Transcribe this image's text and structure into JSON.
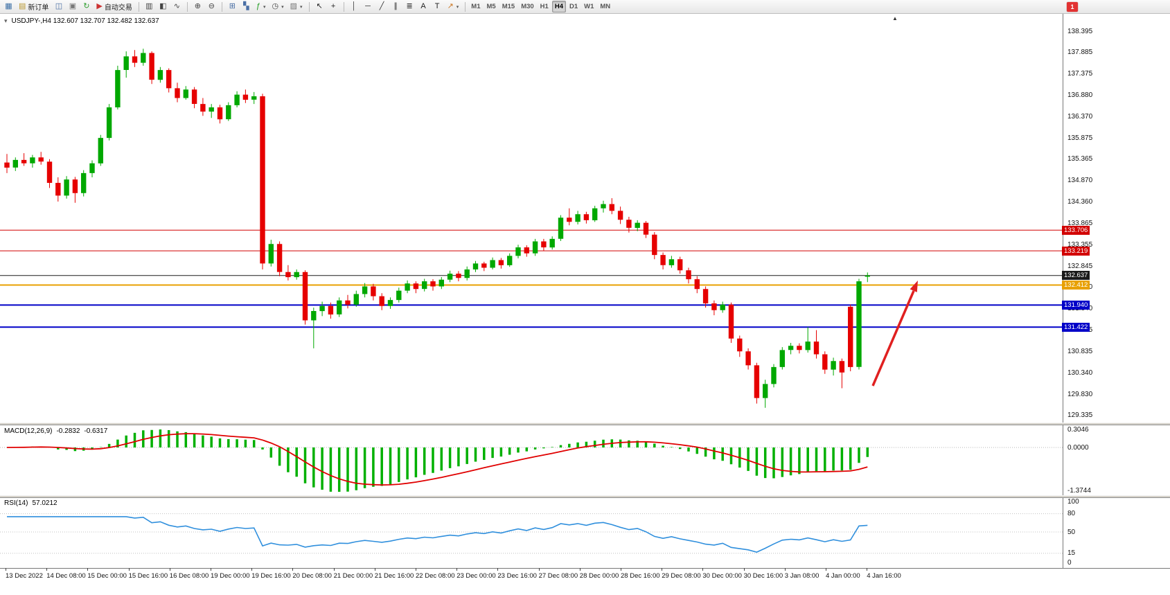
{
  "toolbar": {
    "dropdown_glyph": "▾",
    "notification": "1",
    "buttons": [
      {
        "name": "new-chart",
        "glyph": "▦",
        "color": "#3a6ea5"
      },
      {
        "name": "new-order",
        "glyph": "▤",
        "color": "#b8962e",
        "label": "新订单"
      },
      {
        "name": "market-watch",
        "glyph": "◫",
        "color": "#4a6fa5"
      },
      {
        "name": "data-window",
        "glyph": "▣",
        "color": "#777777"
      },
      {
        "name": "refresh",
        "glyph": "↻",
        "color": "#2e9e2e"
      },
      {
        "name": "autotrading",
        "glyph": "▶",
        "color": "#cc3333",
        "label": "自动交易"
      },
      {
        "sep": true
      },
      {
        "name": "bar-chart",
        "glyph": "▥",
        "color": "#444444"
      },
      {
        "name": "candlestick-chart",
        "glyph": "◧",
        "color": "#444444"
      },
      {
        "name": "line-chart",
        "glyph": "∿",
        "color": "#444444"
      },
      {
        "sep": true
      },
      {
        "name": "zoom-in",
        "glyph": "⊕",
        "color": "#444444"
      },
      {
        "name": "zoom-out",
        "glyph": "⊖",
        "color": "#444444"
      },
      {
        "sep": true
      },
      {
        "name": "tile-windows",
        "glyph": "⊞",
        "color": "#4a6fa5"
      },
      {
        "name": "auto-arrange",
        "glyph": "▚",
        "color": "#4a6fa5"
      },
      {
        "name": "indicators",
        "glyph": "ƒ",
        "color": "#1a9a1a",
        "dropdown": true
      },
      {
        "name": "periods",
        "glyph": "◷",
        "color": "#444444",
        "dropdown": true
      },
      {
        "name": "templates",
        "glyph": "▨",
        "color": "#777777",
        "dropdown": true
      },
      {
        "sep": true
      },
      {
        "name": "cursor",
        "glyph": "↖",
        "color": "#222222"
      },
      {
        "name": "crosshair",
        "glyph": "+",
        "color": "#222222"
      },
      {
        "sep": true
      },
      {
        "name": "vertical-line",
        "glyph": "│",
        "color": "#333333"
      },
      {
        "name": "horizontal-line",
        "glyph": "─",
        "color": "#333333"
      },
      {
        "name": "trendline",
        "glyph": "╱",
        "color": "#333333"
      },
      {
        "name": "equidistant-channel",
        "glyph": "∥",
        "color": "#333333"
      },
      {
        "name": "fibonacci",
        "glyph": "≣",
        "color": "#333333"
      },
      {
        "name": "text",
        "glyph": "A",
        "color": "#222222"
      },
      {
        "name": "text-label",
        "glyph": "T",
        "color": "#222222"
      },
      {
        "name": "arrows",
        "glyph": "↗",
        "color": "#cc7722",
        "dropdown": true
      },
      {
        "sep": true
      }
    ],
    "timeframes": [
      "M1",
      "M5",
      "M15",
      "M30",
      "H1",
      "H4",
      "D1",
      "W1",
      "MN"
    ],
    "active_timeframe": "H4"
  },
  "chart": {
    "title": "USDJPY-,H4 132.607 132.707 132.482 132.637",
    "title_icon": "▾",
    "shift_marker": "▲",
    "symbol": "USDJPY-",
    "period": "H4"
  },
  "price_axis": {
    "labels": [
      "138.395",
      "137.885",
      "137.375",
      "136.880",
      "136.370",
      "135.875",
      "135.365",
      "134.870",
      "134.360",
      "133.865",
      "133.355",
      "132.845",
      "132.350",
      "131.840",
      "131.345",
      "130.835",
      "130.340",
      "129.830",
      "129.335"
    ],
    "tags": [
      {
        "value": "133.706",
        "price": 133.706,
        "color": "#d20000"
      },
      {
        "value": "133.219",
        "price": 133.219,
        "color": "#d20000"
      },
      {
        "value": "132.637",
        "price": 132.637,
        "color": "#1a1a1a"
      },
      {
        "value": "132.412",
        "price": 132.412,
        "color": "#e8a000"
      },
      {
        "value": "131.940",
        "price": 131.94,
        "color": "#0000c8"
      },
      {
        "value": "131.422",
        "price": 131.422,
        "color": "#0000c8"
      }
    ]
  },
  "macd": {
    "label": "MACD(12,26,9)",
    "value_main": "-0.2832",
    "value_signal": "-0.6317",
    "axis_labels": [
      "0.3046",
      "0.0000",
      "-1.3744"
    ],
    "histogram_color": "#00b000",
    "signal_color": "#e00000"
  },
  "rsi": {
    "label": "RSI(14)",
    "value": "57.0212",
    "axis_labels": [
      "100",
      "80",
      "50",
      "15",
      "0"
    ],
    "levels": [
      80,
      50,
      15
    ],
    "line_color": "#2f8fdd"
  },
  "time_axis": {
    "labels": [
      "13 Dec 2022",
      "14 Dec 08:00",
      "15 Dec 00:00",
      "15 Dec 16:00",
      "16 Dec 08:00",
      "19 Dec 00:00",
      "19 Dec 16:00",
      "20 Dec 08:00",
      "21 Dec 00:00",
      "21 Dec 16:00",
      "22 Dec 08:00",
      "23 Dec 00:00",
      "23 Dec 16:00",
      "27 Dec 08:00",
      "28 Dec 00:00",
      "28 Dec 16:00",
      "29 Dec 08:00",
      "30 Dec 00:00",
      "30 Dec 16:00",
      "3 Jan 08:00",
      "4 Jan 00:00",
      "4 Jan 16:00"
    ]
  },
  "chart_data": {
    "type": "candlestick",
    "symbol": "USDJPY-",
    "timeframe": "H4",
    "title": "USDJPY-,H4",
    "ylim": [
      129.335,
      138.395
    ],
    "current_bar": {
      "open": 132.607,
      "high": 132.707,
      "low": 132.482,
      "close": 132.637
    },
    "bull_color": "#00a800",
    "bear_color": "#e60000",
    "horizontal_lines": [
      {
        "price": 133.706,
        "color": "#d20000",
        "width": 1
      },
      {
        "price": 133.219,
        "color": "#d20000",
        "width": 1
      },
      {
        "price": 132.637,
        "color": "#1a1a1a",
        "width": 1
      },
      {
        "price": 132.412,
        "color": "#e8a000",
        "width": 2
      },
      {
        "price": 131.94,
        "color": "#0000c8",
        "width": 2
      },
      {
        "price": 131.422,
        "color": "#0000c8",
        "width": 2
      }
    ],
    "annotations": [
      {
        "type": "arrow",
        "color": "#e02020",
        "direction": "up-right"
      }
    ],
    "indicators": [
      {
        "name": "MACD",
        "params": [
          12,
          26,
          9
        ],
        "current": [
          -0.2832,
          -0.6317
        ],
        "range": [
          -1.3744,
          0.3046
        ]
      },
      {
        "name": "RSI",
        "params": [
          14
        ],
        "current": 57.0212,
        "levels": [
          80,
          50,
          15
        ]
      }
    ],
    "candles": [
      [
        135.3,
        135.5,
        135.05,
        135.18
      ],
      [
        135.18,
        135.42,
        135.1,
        135.36
      ],
      [
        135.36,
        135.52,
        135.22,
        135.28
      ],
      [
        135.28,
        135.48,
        135.18,
        135.42
      ],
      [
        135.42,
        135.55,
        135.25,
        135.32
      ],
      [
        135.32,
        135.38,
        134.7,
        134.82
      ],
      [
        134.82,
        134.95,
        134.38,
        134.52
      ],
      [
        134.52,
        134.98,
        134.45,
        134.9
      ],
      [
        134.9,
        134.96,
        134.35,
        134.58
      ],
      [
        134.58,
        135.12,
        134.5,
        135.05
      ],
      [
        135.05,
        135.35,
        134.95,
        135.28
      ],
      [
        135.28,
        135.95,
        135.22,
        135.88
      ],
      [
        135.88,
        136.68,
        135.82,
        136.6
      ],
      [
        136.6,
        137.58,
        136.55,
        137.48
      ],
      [
        137.48,
        137.92,
        137.3,
        137.8
      ],
      [
        137.8,
        137.95,
        137.55,
        137.65
      ],
      [
        137.65,
        137.98,
        137.58,
        137.88
      ],
      [
        137.88,
        137.92,
        137.15,
        137.25
      ],
      [
        137.25,
        137.55,
        137.18,
        137.48
      ],
      [
        137.48,
        137.52,
        136.95,
        137.05
      ],
      [
        137.05,
        137.18,
        136.72,
        136.82
      ],
      [
        136.82,
        137.1,
        136.78,
        137.02
      ],
      [
        137.02,
        137.08,
        136.58,
        136.68
      ],
      [
        136.68,
        136.82,
        136.4,
        136.5
      ],
      [
        136.5,
        136.68,
        136.35,
        136.6
      ],
      [
        136.6,
        136.66,
        136.22,
        136.32
      ],
      [
        136.32,
        136.72,
        136.28,
        136.65
      ],
      [
        136.65,
        136.98,
        136.6,
        136.9
      ],
      [
        136.9,
        137.02,
        136.7,
        136.78
      ],
      [
        136.78,
        136.96,
        136.68,
        136.86
      ],
      [
        136.86,
        136.92,
        132.78,
        132.92
      ],
      [
        132.92,
        133.48,
        132.85,
        133.38
      ],
      [
        133.38,
        133.44,
        132.62,
        132.72
      ],
      [
        132.72,
        132.88,
        132.52,
        132.6
      ],
      [
        132.6,
        132.78,
        132.54,
        132.72
      ],
      [
        132.72,
        132.76,
        131.48,
        131.58
      ],
      [
        131.58,
        131.88,
        130.92,
        131.8
      ],
      [
        131.8,
        132.02,
        131.68,
        131.92
      ],
      [
        131.92,
        132.0,
        131.62,
        131.72
      ],
      [
        131.72,
        132.12,
        131.66,
        132.05
      ],
      [
        132.05,
        132.18,
        131.86,
        131.95
      ],
      [
        131.95,
        132.28,
        131.9,
        132.2
      ],
      [
        132.2,
        132.46,
        132.12,
        132.38
      ],
      [
        132.38,
        132.44,
        132.05,
        132.15
      ],
      [
        132.15,
        132.22,
        131.82,
        131.92
      ],
      [
        131.92,
        132.12,
        131.85,
        132.06
      ],
      [
        132.06,
        132.35,
        132.0,
        132.28
      ],
      [
        132.28,
        132.52,
        132.22,
        132.45
      ],
      [
        132.45,
        132.5,
        132.22,
        132.32
      ],
      [
        132.32,
        132.56,
        132.26,
        132.5
      ],
      [
        132.5,
        132.55,
        132.28,
        132.38
      ],
      [
        132.38,
        132.6,
        132.32,
        132.54
      ],
      [
        132.54,
        132.75,
        132.48,
        132.68
      ],
      [
        132.68,
        132.74,
        132.5,
        132.58
      ],
      [
        132.58,
        132.85,
        132.52,
        132.78
      ],
      [
        132.78,
        132.98,
        132.72,
        132.92
      ],
      [
        132.92,
        132.96,
        132.74,
        132.82
      ],
      [
        132.82,
        133.06,
        132.78,
        133.0
      ],
      [
        133.0,
        133.05,
        132.8,
        132.88
      ],
      [
        132.88,
        133.16,
        132.84,
        133.1
      ],
      [
        133.1,
        133.36,
        133.04,
        133.3
      ],
      [
        133.3,
        133.35,
        133.08,
        133.16
      ],
      [
        133.16,
        133.5,
        133.1,
        133.44
      ],
      [
        133.44,
        133.5,
        133.22,
        133.3
      ],
      [
        133.3,
        133.56,
        133.25,
        133.5
      ],
      [
        133.5,
        134.06,
        133.45,
        134.0
      ],
      [
        134.0,
        134.22,
        133.82,
        133.9
      ],
      [
        133.9,
        134.16,
        133.84,
        134.08
      ],
      [
        134.08,
        134.14,
        133.86,
        133.94
      ],
      [
        133.94,
        134.28,
        133.9,
        134.22
      ],
      [
        134.22,
        134.4,
        134.12,
        134.32
      ],
      [
        134.32,
        134.46,
        134.08,
        134.16
      ],
      [
        134.16,
        134.26,
        133.85,
        133.95
      ],
      [
        133.95,
        134.02,
        133.65,
        133.76
      ],
      [
        133.76,
        133.94,
        133.68,
        133.88
      ],
      [
        133.88,
        133.92,
        133.52,
        133.6
      ],
      [
        133.6,
        133.66,
        133.02,
        133.12
      ],
      [
        133.12,
        133.18,
        132.78,
        132.88
      ],
      [
        132.88,
        133.1,
        132.82,
        133.02
      ],
      [
        133.02,
        133.08,
        132.68,
        132.76
      ],
      [
        132.76,
        132.82,
        132.45,
        132.55
      ],
      [
        132.55,
        132.62,
        132.22,
        132.32
      ],
      [
        132.32,
        132.38,
        131.88,
        131.98
      ],
      [
        131.98,
        132.05,
        131.7,
        131.82
      ],
      [
        131.82,
        132.02,
        131.76,
        131.95
      ],
      [
        131.95,
        132.0,
        131.05,
        131.15
      ],
      [
        131.15,
        131.22,
        130.72,
        130.85
      ],
      [
        130.85,
        130.92,
        130.42,
        130.52
      ],
      [
        130.52,
        130.58,
        129.62,
        129.75
      ],
      [
        129.75,
        130.18,
        129.52,
        130.08
      ],
      [
        130.08,
        130.55,
        130.0,
        130.48
      ],
      [
        130.48,
        130.95,
        130.42,
        130.88
      ],
      [
        130.88,
        131.05,
        130.78,
        130.98
      ],
      [
        130.98,
        131.04,
        130.8,
        130.88
      ],
      [
        130.88,
        131.42,
        130.82,
        131.08
      ],
      [
        131.08,
        131.35,
        130.68,
        130.78
      ],
      [
        130.78,
        130.85,
        130.32,
        130.42
      ],
      [
        130.42,
        130.7,
        130.28,
        130.62
      ],
      [
        130.62,
        130.68,
        129.98,
        130.35
      ],
      [
        131.9,
        131.95,
        130.38,
        130.48
      ],
      [
        130.48,
        132.56,
        130.42,
        132.5
      ],
      [
        132.607,
        132.707,
        132.482,
        132.637
      ]
    ]
  }
}
